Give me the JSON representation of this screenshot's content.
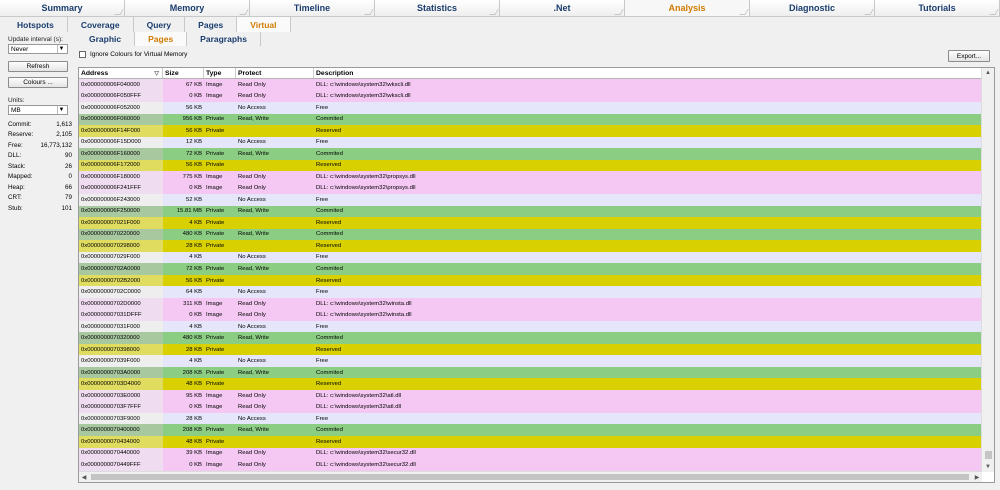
{
  "nav": {
    "main_tabs": [
      "Summary",
      "Memory",
      "Timeline",
      "Statistics",
      ".Net",
      "Analysis",
      "Diagnostic",
      "Tutorials"
    ],
    "sub_tabs": [
      "Hotspots",
      "Coverage",
      "Query",
      "Pages",
      "Virtual"
    ],
    "view_tabs": [
      "Graphic",
      "Pages",
      "Paragraphs"
    ]
  },
  "left_panel": {
    "update_label": "Update interval (s):",
    "update_value": "Never",
    "refresh_label": "Refresh",
    "colours_label": "Colours ...",
    "units_label": "Units:",
    "units_value": "MB",
    "stats": [
      {
        "label": "Commit:",
        "value": "1,613"
      },
      {
        "label": "Reserve:",
        "value": "2,105"
      },
      {
        "label": "Free:",
        "value": "16,773,132"
      },
      {
        "label": "DLL:",
        "value": "90"
      },
      {
        "label": "Stack:",
        "value": "26"
      },
      {
        "label": "Mapped:",
        "value": "0"
      },
      {
        "label": "Heap:",
        "value": "66"
      },
      {
        "label": "CRT:",
        "value": "79"
      },
      {
        "label": "Stub:",
        "value": "101"
      }
    ]
  },
  "toolbar": {
    "ignore_label": "Ignore Colours for Virtual Memory",
    "export_label": "Export..."
  },
  "grid": {
    "headers": [
      "Address",
      "Size",
      "Type",
      "Protect",
      "Description"
    ],
    "colors": {
      "image": "#f4c8f2",
      "commit": "#8ccd84",
      "reserve": "#d8d000",
      "free": "#e6e6fa"
    },
    "addr_colors": {
      "image": "#f0dcf0",
      "commit": "#a8c8a0",
      "reserve": "#e0dc60",
      "free": "#eeeeee"
    },
    "rows": [
      {
        "address": "0x000000006F040000",
        "size": "67 KB",
        "type": "Image",
        "protect": "Read Only",
        "desc": "DLL: c:\\windows\\system32\\wkscli.dll",
        "kind": "image"
      },
      {
        "address": "0x000000006F050FFF",
        "size": "0 KB",
        "type": "Image",
        "protect": "Read Only",
        "desc": "DLL: c:\\windows\\system32\\wkscli.dll",
        "kind": "image"
      },
      {
        "address": "0x000000006F052000",
        "size": "56 KB",
        "type": "",
        "protect": "No Access",
        "desc": "Free",
        "kind": "free"
      },
      {
        "address": "0x000000006F060000",
        "size": "956 KB",
        "type": "Private",
        "protect": "Read, Write",
        "desc": "Commited",
        "kind": "commit"
      },
      {
        "address": "0x000000006F14F000",
        "size": "56 KB",
        "type": "Private",
        "protect": "",
        "desc": "Reserved",
        "kind": "reserve"
      },
      {
        "address": "0x000000006F15D000",
        "size": "12 KB",
        "type": "",
        "protect": "No Access",
        "desc": "Free",
        "kind": "free"
      },
      {
        "address": "0x000000006F160000",
        "size": "72 KB",
        "type": "Private",
        "protect": "Read, Write",
        "desc": "Commited",
        "kind": "commit"
      },
      {
        "address": "0x000000006F172000",
        "size": "56 KB",
        "type": "Private",
        "protect": "",
        "desc": "Reserved",
        "kind": "reserve"
      },
      {
        "address": "0x000000006F180000",
        "size": "775 KB",
        "type": "Image",
        "protect": "Read Only",
        "desc": "DLL: c:\\windows\\system32\\propsys.dll",
        "kind": "image"
      },
      {
        "address": "0x000000006F241FFF",
        "size": "0 KB",
        "type": "Image",
        "protect": "Read Only",
        "desc": "DLL: c:\\windows\\system32\\propsys.dll",
        "kind": "image"
      },
      {
        "address": "0x000000006F243000",
        "size": "52 KB",
        "type": "",
        "protect": "No Access",
        "desc": "Free",
        "kind": "free"
      },
      {
        "address": "0x000000006F250000",
        "size": "15.81 MB",
        "type": "Private",
        "protect": "Read, Write",
        "desc": "Commited",
        "kind": "commit"
      },
      {
        "address": "0x000000007021F000",
        "size": "4 KB",
        "type": "Private",
        "protect": "",
        "desc": "Reserved",
        "kind": "reserve"
      },
      {
        "address": "0x0000000070220000",
        "size": "480 KB",
        "type": "Private",
        "protect": "Read, Write",
        "desc": "Commited",
        "kind": "commit"
      },
      {
        "address": "0x0000000070298000",
        "size": "28 KB",
        "type": "Private",
        "protect": "",
        "desc": "Reserved",
        "kind": "reserve"
      },
      {
        "address": "0x000000007029F000",
        "size": "4 KB",
        "type": "",
        "protect": "No Access",
        "desc": "Free",
        "kind": "free"
      },
      {
        "address": "0x00000000702A0000",
        "size": "72 KB",
        "type": "Private",
        "protect": "Read, Write",
        "desc": "Commited",
        "kind": "commit"
      },
      {
        "address": "0x00000000702B2000",
        "size": "56 KB",
        "type": "Private",
        "protect": "",
        "desc": "Reserved",
        "kind": "reserve"
      },
      {
        "address": "0x00000000702C0000",
        "size": "64 KB",
        "type": "",
        "protect": "No Access",
        "desc": "Free",
        "kind": "free"
      },
      {
        "address": "0x00000000702D0000",
        "size": "311 KB",
        "type": "Image",
        "protect": "Read Only",
        "desc": "DLL: c:\\windows\\system32\\winsta.dll",
        "kind": "image"
      },
      {
        "address": "0x000000007031DFFF",
        "size": "0 KB",
        "type": "Image",
        "protect": "Read Only",
        "desc": "DLL: c:\\windows\\system32\\winsta.dll",
        "kind": "image"
      },
      {
        "address": "0x000000007031F000",
        "size": "4 KB",
        "type": "",
        "protect": "No Access",
        "desc": "Free",
        "kind": "free"
      },
      {
        "address": "0x0000000070320000",
        "size": "480 KB",
        "type": "Private",
        "protect": "Read, Write",
        "desc": "Commited",
        "kind": "commit"
      },
      {
        "address": "0x0000000070398000",
        "size": "28 KB",
        "type": "Private",
        "protect": "",
        "desc": "Reserved",
        "kind": "reserve"
      },
      {
        "address": "0x000000007039F000",
        "size": "4 KB",
        "type": "",
        "protect": "No Access",
        "desc": "Free",
        "kind": "free"
      },
      {
        "address": "0x00000000703A0000",
        "size": "208 KB",
        "type": "Private",
        "protect": "Read, Write",
        "desc": "Commited",
        "kind": "commit"
      },
      {
        "address": "0x00000000703D4000",
        "size": "48 KB",
        "type": "Private",
        "protect": "",
        "desc": "Reserved",
        "kind": "reserve"
      },
      {
        "address": "0x00000000703E0000",
        "size": "95 KB",
        "type": "Image",
        "protect": "Read Only",
        "desc": "DLL: c:\\windows\\system32\\atl.dll",
        "kind": "image"
      },
      {
        "address": "0x00000000703F7FFF",
        "size": "0 KB",
        "type": "Image",
        "protect": "Read Only",
        "desc": "DLL: c:\\windows\\system32\\atl.dll",
        "kind": "image"
      },
      {
        "address": "0x00000000703F9000",
        "size": "28 KB",
        "type": "",
        "protect": "No Access",
        "desc": "Free",
        "kind": "free"
      },
      {
        "address": "0x0000000070400000",
        "size": "208 KB",
        "type": "Private",
        "protect": "Read, Write",
        "desc": "Commited",
        "kind": "commit"
      },
      {
        "address": "0x0000000070434000",
        "size": "48 KB",
        "type": "Private",
        "protect": "",
        "desc": "Reserved",
        "kind": "reserve"
      },
      {
        "address": "0x0000000070440000",
        "size": "39 KB",
        "type": "Image",
        "protect": "Read Only",
        "desc": "DLL: c:\\windows\\system32\\secur32.dll",
        "kind": "image"
      },
      {
        "address": "0x0000000070449FFF",
        "size": "0 KB",
        "type": "Image",
        "protect": "Read Only",
        "desc": "DLL: c:\\windows\\system32\\secur32.dll",
        "kind": "image"
      }
    ]
  }
}
